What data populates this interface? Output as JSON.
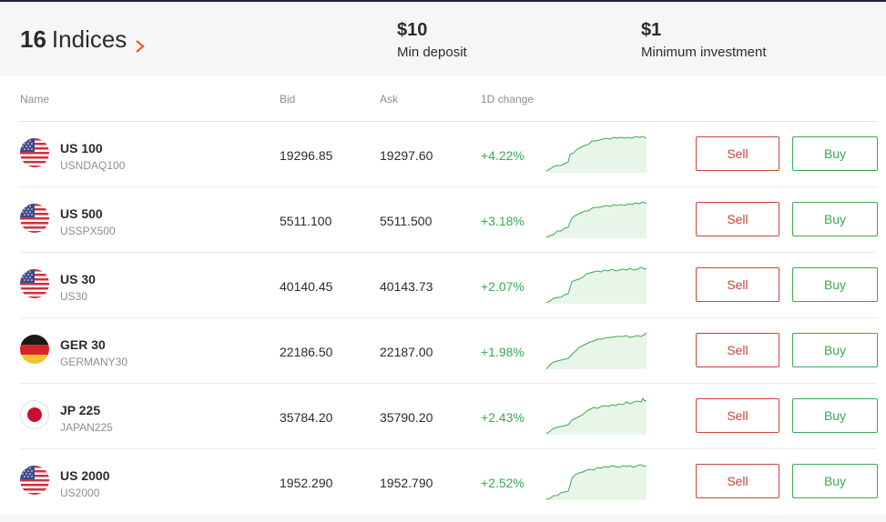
{
  "header": {
    "count": "16",
    "label": "Indices",
    "stats": [
      {
        "value": "$10",
        "caption": "Min deposit"
      },
      {
        "value": "$1",
        "caption": "Minimum investment"
      }
    ]
  },
  "columns": {
    "name": "Name",
    "bid": "Bid",
    "ask": "Ask",
    "change": "1D change"
  },
  "colors": {
    "sell": "#c8443a",
    "buy": "#3ca955",
    "positive": "#3ca955",
    "header_bg": "#f6f6f9"
  },
  "rows": [
    {
      "name": "US 100",
      "symbol": "USNDAQ100",
      "bid": "19296.85",
      "ask": "19297.60",
      "change": "+4.22%",
      "flag": "us-flag-icon",
      "sell": "Sell",
      "buy": "Buy"
    },
    {
      "name": "US 500",
      "symbol": "USSPX500",
      "bid": "5511.100",
      "ask": "5511.500",
      "change": "+3.18%",
      "flag": "us-flag-icon",
      "sell": "Sell",
      "buy": "Buy"
    },
    {
      "name": "US 30",
      "symbol": "US30",
      "bid": "40140.45",
      "ask": "40143.73",
      "change": "+2.07%",
      "flag": "us-flag-icon",
      "sell": "Sell",
      "buy": "Buy"
    },
    {
      "name": "GER 30",
      "symbol": "GERMANY30",
      "bid": "22186.50",
      "ask": "22187.00",
      "change": "+1.98%",
      "flag": "germany-flag-icon",
      "sell": "Sell",
      "buy": "Buy"
    },
    {
      "name": "JP 225",
      "symbol": "JAPAN225",
      "bid": "35784.20",
      "ask": "35790.20",
      "change": "+2.43%",
      "flag": "japan-flag-icon",
      "sell": "Sell",
      "buy": "Buy"
    },
    {
      "name": "US 2000",
      "symbol": "US2000",
      "bid": "1952.290",
      "ask": "1952.790",
      "change": "+2.52%",
      "flag": "us-flag-icon",
      "sell": "Sell",
      "buy": "Buy"
    }
  ]
}
